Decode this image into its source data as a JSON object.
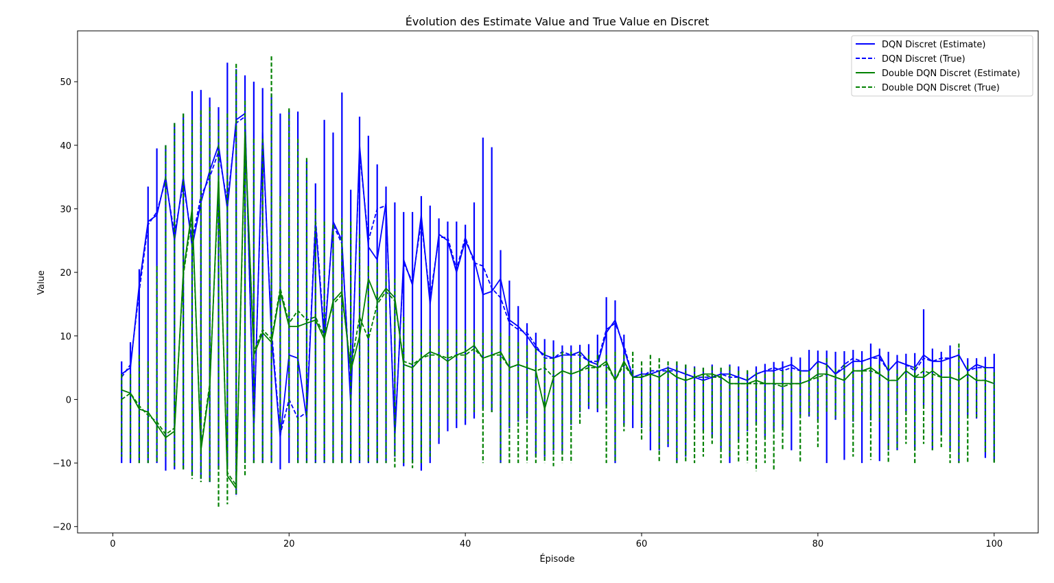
{
  "chart_data": {
    "type": "line",
    "title": "Évolution des Estimate Value and True Value en Discret",
    "xlabel": "Épisode",
    "ylabel": "Value",
    "xlim": [
      -4,
      105
    ],
    "ylim": [
      -21,
      58
    ],
    "xticks": [
      0,
      20,
      40,
      60,
      80,
      100
    ],
    "yticks": [
      -20,
      -10,
      0,
      10,
      20,
      30,
      40,
      50
    ],
    "xtick_labels": [
      "0",
      "20",
      "40",
      "60",
      "80",
      "100"
    ],
    "ytick_labels": [
      "−20",
      "−10",
      "0",
      "10",
      "20",
      "30",
      "40",
      "50"
    ],
    "grid": false,
    "legend_position": "upper-right",
    "series": [
      {
        "name": "DQN Discret (Estimate)",
        "color": "#0000ff",
        "style": "solid",
        "x": [
          1,
          2,
          3,
          4,
          5,
          6,
          7,
          8,
          9,
          10,
          11,
          12,
          13,
          14,
          15,
          16,
          17,
          18,
          19,
          20,
          21,
          22,
          23,
          24,
          25,
          26,
          27,
          28,
          29,
          30,
          31,
          32,
          33,
          34,
          35,
          36,
          37,
          38,
          39,
          40,
          41,
          42,
          43,
          44,
          45,
          46,
          47,
          48,
          49,
          50,
          51,
          52,
          53,
          54,
          55,
          56,
          57,
          58,
          59,
          60,
          61,
          62,
          63,
          64,
          65,
          66,
          67,
          68,
          69,
          70,
          71,
          72,
          73,
          74,
          75,
          76,
          77,
          78,
          79,
          80,
          81,
          82,
          83,
          84,
          85,
          86,
          87,
          88,
          89,
          90,
          91,
          92,
          93,
          94,
          95,
          96,
          97,
          98,
          99,
          100
        ],
        "y": [
          4.0,
          5.0,
          18.0,
          28.0,
          29.0,
          35.0,
          25.0,
          35.0,
          24.0,
          31.0,
          36.0,
          40.0,
          30.0,
          44.0,
          45.0,
          -5.0,
          42.0,
          10.0,
          -6.0,
          7.0,
          6.5,
          -3.0,
          28.0,
          9.0,
          28.0,
          25.0,
          -1.0,
          40.0,
          24.0,
          22.0,
          31.0,
          -6.0,
          22.0,
          18.0,
          29.0,
          15.0,
          26.0,
          25.0,
          20.0,
          25.0,
          22.0,
          16.5,
          17.0,
          19.0,
          12.5,
          11.5,
          10.0,
          8.0,
          7.0,
          6.5,
          7.0,
          7.0,
          7.5,
          6.0,
          5.5,
          10.5,
          12.5,
          8.0,
          3.5,
          4.0,
          4.0,
          4.5,
          5.0,
          4.5,
          4.0,
          3.5,
          3.0,
          3.5,
          4.0,
          4.0,
          3.5,
          3.0,
          4.0,
          4.5,
          4.5,
          5.0,
          5.5,
          4.5,
          4.5,
          6.0,
          5.5,
          4.0,
          5.0,
          6.0,
          6.0,
          6.5,
          7.0,
          4.5,
          6.0,
          5.5,
          5.0,
          7.0,
          6.0,
          6.0,
          6.5,
          7.0,
          4.5,
          5.5,
          5.0,
          5.0
        ],
        "spike_highs": [
          6,
          9,
          20.5,
          33.5,
          39.5,
          40,
          43.5,
          45,
          48.5,
          48.7,
          47.5,
          46,
          53,
          52,
          51,
          50,
          49,
          48,
          45,
          45.5,
          45.3,
          37.5,
          34,
          44,
          42,
          48.3,
          33,
          44.5,
          41.5,
          37,
          33.5,
          31,
          29.5,
          29.5,
          32,
          30.5,
          28.5,
          28,
          28,
          27.5,
          31,
          41.2,
          39.7,
          23.5,
          18.7,
          14.7,
          12,
          10.5,
          9.5,
          9.3,
          8.5,
          8.5,
          8.6,
          8.7,
          10.2,
          16.1,
          15.6,
          10.2,
          4.7,
          4.5,
          4.5,
          4.5,
          5.2,
          5.9,
          5.5,
          5.2,
          5,
          5.5,
          5,
          5.5,
          5.2,
          4.5,
          5.2,
          5.6,
          5.9,
          6,
          6.7,
          6.6,
          7.8,
          7.7,
          7.7,
          7.5,
          7.6,
          7.8,
          7.6,
          8.8,
          8,
          7.5,
          7,
          7.2,
          7.3,
          14.2,
          8,
          7.5,
          8.5,
          8,
          6.5,
          6.5,
          6.7,
          7.2
        ],
        "spike_lows": [
          -10,
          -10,
          -10,
          -10,
          -10,
          -11.2,
          -11,
          -11,
          -12,
          -12.5,
          -13,
          -11,
          -10.5,
          -15,
          -10,
          -10,
          -10,
          -10,
          -11,
          -10,
          -10,
          -10,
          -10,
          -10,
          -10,
          -10,
          -10,
          -10,
          -10,
          -10,
          -10,
          -9,
          -10.5,
          -10,
          -11.2,
          -10,
          -7,
          -5,
          -4.5,
          -4,
          -3,
          -1.5,
          -2,
          -10,
          -4.5,
          -3.5,
          -3,
          -9,
          -9,
          -8,
          -8.5,
          -4,
          -2,
          -1.5,
          -2,
          -1,
          -10,
          -4,
          -4.5,
          -4.5,
          -8,
          -8,
          -7.5,
          -10,
          -9,
          -3,
          -5,
          -6,
          -8,
          -10,
          -6.5,
          -5,
          -4,
          -6,
          -5,
          -4.5,
          -8,
          -2.5,
          -2.7,
          -3.3,
          -10,
          -3.2,
          -9.5,
          -3.5,
          -10,
          -3.3,
          -9.7,
          -8,
          -8,
          -2,
          -8,
          -1,
          -8,
          -5.5,
          -8,
          -10,
          -2.5,
          -3,
          -9.2,
          -9.8
        ]
      },
      {
        "name": "DQN Discret (True)",
        "color": "#0000ff",
        "style": "dashed",
        "x": [
          1,
          2,
          3,
          4,
          5,
          6,
          7,
          8,
          9,
          10,
          11,
          12,
          13,
          14,
          15,
          16,
          17,
          18,
          19,
          20,
          21,
          22,
          23,
          24,
          25,
          26,
          27,
          28,
          29,
          30,
          31,
          32,
          33,
          34,
          35,
          36,
          37,
          38,
          39,
          40,
          41,
          42,
          43,
          44,
          45,
          46,
          47,
          48,
          49,
          50,
          51,
          52,
          53,
          54,
          55,
          56,
          57,
          58,
          59,
          60,
          61,
          62,
          63,
          64,
          65,
          66,
          67,
          68,
          69,
          70,
          71,
          72,
          73,
          74,
          75,
          76,
          77,
          78,
          79,
          80,
          81,
          82,
          83,
          84,
          85,
          86,
          87,
          88,
          89,
          90,
          91,
          92,
          93,
          94,
          95,
          96,
          97,
          98,
          99,
          100
        ],
        "y": [
          3.5,
          5.5,
          17.0,
          27.5,
          29.5,
          34.5,
          26.0,
          34.0,
          25.0,
          32.0,
          35.0,
          39.0,
          31.0,
          43.5,
          44.5,
          -4.5,
          41.0,
          11.0,
          -5.5,
          0.0,
          -3.0,
          -2.0,
          28.5,
          10.0,
          27.5,
          24.5,
          0.0,
          39.0,
          25.0,
          30.0,
          30.5,
          -5.5,
          21.5,
          18.5,
          28.0,
          16.0,
          25.5,
          25.5,
          20.5,
          25.5,
          21.5,
          21.0,
          17.5,
          16.0,
          12.0,
          11.0,
          10.5,
          8.5,
          6.5,
          6.5,
          7.5,
          7.0,
          7.0,
          6.0,
          6.0,
          11.0,
          12.0,
          8.5,
          3.5,
          3.5,
          4.5,
          4.5,
          4.5,
          4.5,
          4.0,
          3.5,
          3.5,
          3.5,
          4.0,
          3.5,
          3.5,
          3.0,
          4.0,
          4.5,
          5.0,
          4.5,
          5.0,
          4.5,
          4.5,
          6.0,
          5.5,
          4.0,
          5.5,
          6.5,
          6.0,
          6.5,
          6.5,
          4.5,
          6.0,
          5.5,
          4.5,
          6.5,
          6.0,
          6.5,
          6.5,
          7.0,
          4.5,
          5.0,
          5.0,
          5.0
        ]
      },
      {
        "name": "Double DQN Discret (Estimate)",
        "color": "#008000",
        "style": "solid",
        "x": [
          1,
          2,
          3,
          4,
          5,
          6,
          7,
          8,
          9,
          10,
          11,
          12,
          13,
          14,
          15,
          16,
          17,
          18,
          19,
          20,
          21,
          22,
          23,
          24,
          25,
          26,
          27,
          28,
          29,
          30,
          31,
          32,
          33,
          34,
          35,
          36,
          37,
          38,
          39,
          40,
          41,
          42,
          43,
          44,
          45,
          46,
          47,
          48,
          49,
          50,
          51,
          52,
          53,
          54,
          55,
          56,
          57,
          58,
          59,
          60,
          61,
          62,
          63,
          64,
          65,
          66,
          67,
          68,
          69,
          70,
          71,
          72,
          73,
          74,
          75,
          76,
          77,
          78,
          79,
          80,
          81,
          82,
          83,
          84,
          85,
          86,
          87,
          88,
          89,
          90,
          91,
          92,
          93,
          94,
          95,
          96,
          97,
          98,
          99,
          100
        ],
        "y": [
          1.5,
          1.0,
          -1.5,
          -2.0,
          -4.0,
          -6.0,
          -5.0,
          20.0,
          30.0,
          -8.0,
          2.0,
          35.0,
          -12.0,
          -14.0,
          42.0,
          7.0,
          10.5,
          9.0,
          17.0,
          11.5,
          11.5,
          12.0,
          12.5,
          9.5,
          15.5,
          17.0,
          4.5,
          10.0,
          19.0,
          15.5,
          17.5,
          16.0,
          5.5,
          5.0,
          6.5,
          7.5,
          7.0,
          6.0,
          7.0,
          7.5,
          8.5,
          6.5,
          7.0,
          7.5,
          5.0,
          5.5,
          5.0,
          4.5,
          -1.5,
          3.5,
          4.5,
          4.0,
          4.5,
          5.5,
          5.0,
          6.0,
          3.0,
          6.0,
          3.5,
          3.5,
          4.0,
          3.5,
          4.5,
          3.5,
          3.0,
          3.5,
          4.0,
          4.0,
          3.5,
          2.5,
          2.5,
          2.5,
          3.0,
          2.5,
          2.5,
          2.5,
          2.5,
          2.5,
          3.0,
          4.0,
          4.0,
          3.5,
          3.0,
          4.5,
          4.5,
          5.0,
          4.0,
          3.0,
          3.0,
          4.5,
          3.5,
          3.5,
          4.5,
          3.5,
          3.5,
          3.0,
          4.0,
          3.0,
          3.0,
          2.5
        ]
      },
      {
        "name": "Double DQN Discret (True)",
        "color": "#008000",
        "style": "dashed",
        "x": [
          1,
          2,
          3,
          4,
          5,
          6,
          7,
          8,
          9,
          10,
          11,
          12,
          13,
          14,
          15,
          16,
          17,
          18,
          19,
          20,
          21,
          22,
          23,
          24,
          25,
          26,
          27,
          28,
          29,
          30,
          31,
          32,
          33,
          34,
          35,
          36,
          37,
          38,
          39,
          40,
          41,
          42,
          43,
          44,
          45,
          46,
          47,
          48,
          49,
          50,
          51,
          52,
          53,
          54,
          55,
          56,
          57,
          58,
          59,
          60,
          61,
          62,
          63,
          64,
          65,
          66,
          67,
          68,
          69,
          70,
          71,
          72,
          73,
          74,
          75,
          76,
          77,
          78,
          79,
          80,
          81,
          82,
          83,
          84,
          85,
          86,
          87,
          88,
          89,
          90,
          91,
          92,
          93,
          94,
          95,
          96,
          97,
          98,
          99,
          100
        ],
        "y": [
          0.0,
          1.0,
          -1.0,
          -2.5,
          -3.5,
          -5.5,
          -4.5,
          19.5,
          29.0,
          -7.5,
          2.5,
          34.0,
          -11.5,
          -13.5,
          41.0,
          7.5,
          11.0,
          9.5,
          17.5,
          12.0,
          14.0,
          12.5,
          13.0,
          10.0,
          15.0,
          16.5,
          5.0,
          13.0,
          9.5,
          15.0,
          17.0,
          15.5,
          6.0,
          5.5,
          6.5,
          7.0,
          7.0,
          6.5,
          7.0,
          7.0,
          8.0,
          6.5,
          7.0,
          7.0,
          5.0,
          5.5,
          5.0,
          4.5,
          5.0,
          3.5,
          4.5,
          4.0,
          4.5,
          5.0,
          5.0,
          5.5,
          3.0,
          5.5,
          3.5,
          3.5,
          4.0,
          3.5,
          4.5,
          3.5,
          3.0,
          3.5,
          4.0,
          3.5,
          3.5,
          2.5,
          2.5,
          2.5,
          2.5,
          2.5,
          2.5,
          2.0,
          2.5,
          2.5,
          3.0,
          3.5,
          4.0,
          3.5,
          3.0,
          4.5,
          4.5,
          4.5,
          4.0,
          3.0,
          3.0,
          4.5,
          3.5,
          4.5,
          4.0,
          3.5,
          3.5,
          3.0,
          4.0,
          3.0,
          3.0,
          2.5
        ],
        "spike_highs": [
          4,
          4,
          7,
          6,
          21,
          40,
          43.5,
          45,
          44,
          45.5,
          46,
          44,
          45,
          52.8,
          47,
          41,
          41,
          54,
          32,
          45.8,
          41,
          38,
          30,
          28,
          27.5,
          28.5,
          28,
          26,
          21,
          21.5,
          20.5,
          19,
          13,
          11,
          11,
          11,
          11,
          11,
          11,
          11,
          11,
          10.5,
          11,
          10.5,
          10,
          9,
          8.5,
          8,
          7.5,
          7.5,
          7.5,
          7.5,
          7.5,
          7,
          7,
          7,
          7.5,
          7,
          7.5,
          6,
          7,
          6.5,
          6,
          6,
          5.5,
          5,
          5,
          5.2,
          5,
          5.2,
          4.5,
          4.6,
          4.3,
          4,
          4.2,
          4.5,
          4.3,
          4.5,
          4.5,
          5.7,
          6.5,
          4.9,
          5.5,
          5,
          5.5,
          5.2,
          5.5,
          5.4,
          4.7,
          5,
          5.2,
          5,
          5,
          4.7,
          5,
          8.8,
          5.4,
          4.5,
          5,
          4.3
        ],
        "spike_lows": [
          -9,
          -9.5,
          -10,
          -10,
          -10,
          -9,
          -10.5,
          -11,
          -12.5,
          -13,
          -13.2,
          -17.2,
          -16.5,
          -15.2,
          -12,
          -10,
          -10,
          -10,
          -5,
          -6,
          -10,
          -10,
          -10,
          -10,
          -10,
          -10,
          -10,
          -10,
          -10,
          -10,
          -10,
          -10.7,
          -10,
          -10.8,
          -10,
          -9,
          -6,
          -3,
          -3,
          -3,
          -2,
          -10,
          -2,
          -10,
          -10,
          -10,
          -10,
          -10,
          -10,
          -10.5,
          -10,
          -10,
          -4,
          -1,
          -1.5,
          -10,
          -10,
          -5,
          -1,
          -6.5,
          -5,
          -10,
          -7,
          -10,
          -10,
          -10,
          -9,
          -7,
          -10,
          -9,
          -10,
          -10,
          -11.3,
          -10,
          -11.2,
          -8,
          -2,
          -10,
          -2.5,
          -7.5,
          -2,
          -3,
          -3,
          -9,
          -2,
          -9.5,
          -3.5,
          -10,
          -8,
          -7,
          -10,
          -7,
          -8,
          -7.5,
          -10,
          -10,
          -10,
          -2.8,
          -8.5,
          -10
        ]
      }
    ]
  }
}
